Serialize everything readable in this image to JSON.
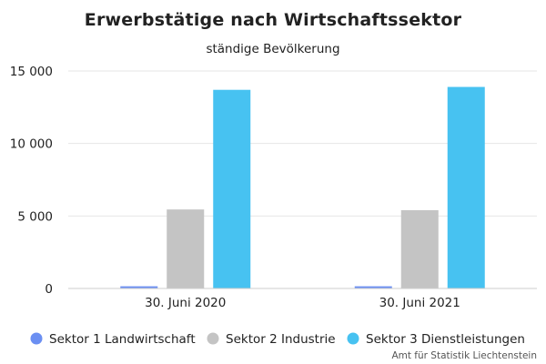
{
  "chart_data": {
    "type": "bar",
    "title": "Erwerbstätige nach Wirtschaftssektor",
    "subtitle": "ständige Bevölkerung",
    "categories": [
      "30. Juni 2020",
      "30. Juni 2021"
    ],
    "series": [
      {
        "name": "Sektor 1 Landwirtschaft",
        "color": "#6b8ff2",
        "values": [
          150,
          150
        ]
      },
      {
        "name": "Sektor 2 Industrie",
        "color": "#c4c4c4",
        "values": [
          5450,
          5400
        ]
      },
      {
        "name": "Sektor 3 Dienstleistungen",
        "color": "#47c2f1",
        "values": [
          13700,
          13900
        ]
      }
    ],
    "yticks": [
      {
        "value": 0,
        "label": "0"
      },
      {
        "value": 5000,
        "label": "5 000"
      },
      {
        "value": 10000,
        "label": "10 000"
      },
      {
        "value": 15000,
        "label": "15 000"
      }
    ],
    "ylim": [
      0,
      15000
    ],
    "xlabel": "",
    "ylabel": "",
    "grid": true,
    "legend": "bottom",
    "credit": "Amt für Statistik Liechtenstein"
  }
}
